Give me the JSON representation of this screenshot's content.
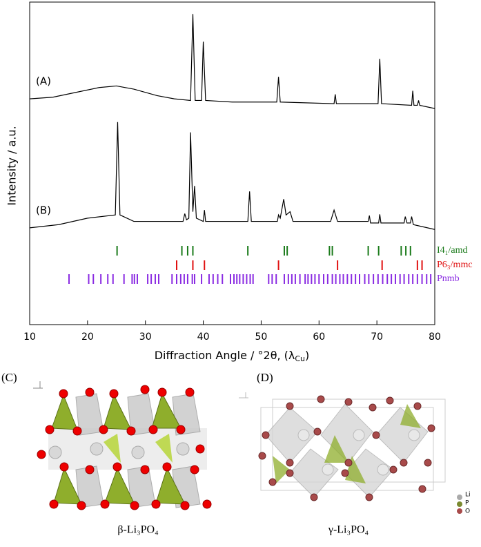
{
  "chart_data": {
    "type": "line",
    "y_label": "Intensity / a.u.",
    "x_label": [
      "Diffraction Angle / °2θ, (λ",
      "Cu",
      ")"
    ],
    "xlim": [
      10,
      80
    ],
    "xticks": [
      10,
      20,
      30,
      40,
      50,
      60,
      70,
      80
    ],
    "ylim": [
      0,
      100
    ],
    "series": [
      {
        "name": "(A)",
        "color": "#000000",
        "x": [
          10,
          14,
          18,
          22,
          25,
          28,
          32,
          35,
          37.8,
          38.2,
          38.6,
          39.7,
          40.0,
          40.4,
          45,
          52.7,
          53.0,
          53.3,
          62.6,
          62.8,
          63.0,
          70.2,
          70.5,
          70.8,
          76.0,
          76.2,
          76.4,
          77.0,
          77.2,
          77.4,
          80
        ],
        "values": [
          70,
          70.5,
          72,
          73.5,
          74,
          73,
          71,
          70,
          69.5,
          96.3,
          69.5,
          69.5,
          87.7,
          69.5,
          69,
          69,
          76.8,
          69,
          68.5,
          71.4,
          68.5,
          68.5,
          82.4,
          68.5,
          68,
          72.5,
          68,
          68,
          69.5,
          68,
          67
        ]
      },
      {
        "name": "(B)",
        "color": "#000000",
        "x": [
          10,
          15,
          20,
          24.8,
          25.2,
          25.6,
          28,
          36.5,
          36.8,
          37.1,
          37.5,
          37.8,
          38.2,
          38.5,
          38.8,
          40.0,
          40.2,
          40.4,
          47.7,
          48.0,
          48.3,
          52.8,
          53.0,
          53.3,
          53.9,
          54.3,
          55.0,
          55.5,
          62.0,
          62.6,
          63.2,
          68.5,
          68.7,
          68.9,
          70.3,
          70.5,
          70.7,
          74.7,
          74.9,
          75.2,
          75.8,
          76.0,
          76.3,
          80
        ],
        "values": [
          30,
          31,
          33,
          34,
          62.8,
          34,
          32,
          32,
          34.4,
          32.5,
          33,
          59.6,
          35,
          43,
          33,
          32,
          35.5,
          32,
          32,
          41.3,
          32,
          32,
          34,
          33,
          38.9,
          34,
          35,
          32,
          32,
          35.5,
          32,
          32,
          33.8,
          31.5,
          31.5,
          34.2,
          31.5,
          31.5,
          33.5,
          31.5,
          31.5,
          33.5,
          31,
          29.5
        ]
      }
    ],
    "phases": [
      {
        "name": "I4₁/amd",
        "color": "#1a7a1a",
        "positions": [
          25.1,
          36.3,
          37.3,
          38.2,
          47.7,
          54.0,
          54.5,
          61.8,
          62.3,
          68.5,
          70.3,
          74.2,
          75.0,
          75.8
        ]
      },
      {
        "name": "P6₃/mmc",
        "color": "#e01010",
        "positions": [
          35.4,
          38.2,
          40.2,
          53.0,
          63.2,
          70.9,
          77.0,
          77.8
        ]
      },
      {
        "name": "Pnmb",
        "color": "#8a2be2",
        "positions": [
          16.8,
          20.2,
          21.0,
          22.3,
          23.5,
          24.4,
          26.3,
          27.7,
          28.1,
          28.6,
          30.4,
          31.0,
          31.7,
          32.3,
          34.6,
          35.4,
          36.1,
          36.7,
          37.3,
          38.1,
          38.5,
          39.7,
          41.0,
          41.7,
          42.5,
          43.3,
          44.7,
          45.3,
          45.8,
          46.3,
          46.9,
          47.5,
          48.1,
          48.6,
          51.3,
          51.9,
          52.6,
          54.0,
          54.7,
          55.3,
          55.9,
          56.7,
          57.6,
          58.1,
          58.7,
          59.3,
          60.0,
          60.8,
          61.5,
          62.3,
          62.9,
          63.6,
          64.2,
          64.9,
          65.6,
          66.3,
          67.0,
          67.9,
          68.6,
          69.4,
          70.2,
          71.0,
          71.8,
          72.5,
          73.2,
          74.0,
          74.7,
          75.5,
          76.2,
          77.0,
          77.8,
          78.6,
          79.3
        ]
      }
    ]
  },
  "structures": {
    "left": {
      "label": "(C)",
      "caption": "β-Li₃PO₄"
    },
    "right": {
      "label": "(D)",
      "caption": "γ-Li₃PO₄"
    },
    "legend": [
      "Li",
      "P",
      "O"
    ]
  }
}
